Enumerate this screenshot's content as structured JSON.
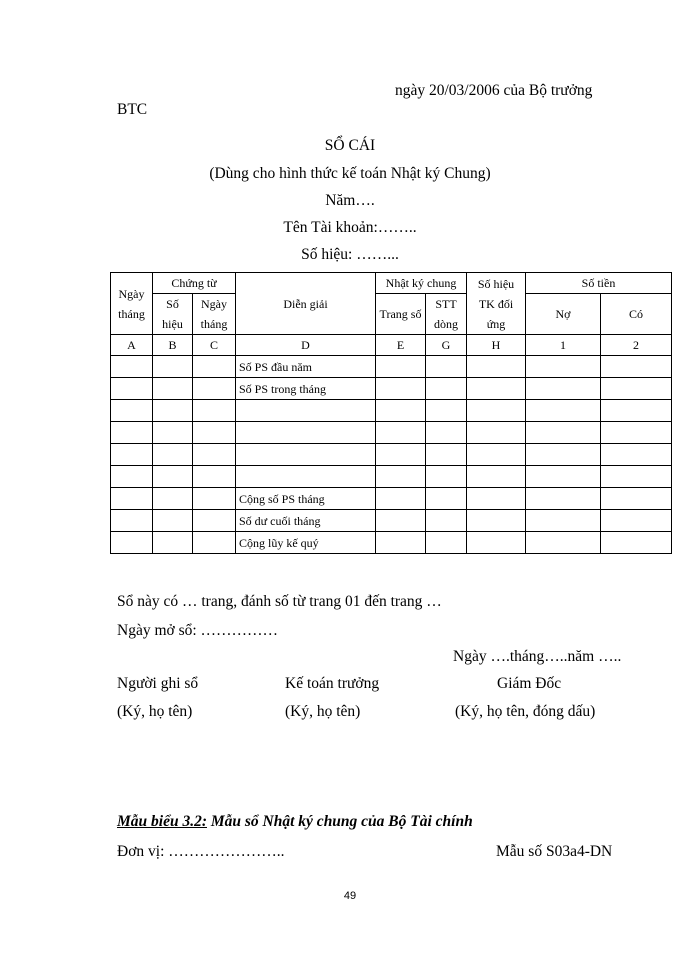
{
  "header": {
    "line1": "ngày   20/03/2006   của  Bộ  trưởng",
    "line2": "BTC"
  },
  "title": {
    "main": "SỔ CÁI",
    "subtitle": "(Dùng cho hình thức kế toán Nhật ký Chung)",
    "year": "Năm….",
    "account_name": "Tên Tài khoản:……..",
    "account_code": "Số hiệu:  ……..."
  },
  "table": {
    "h": {
      "ngay_thang": "Ngày tháng",
      "chung_tu": "Chứng từ",
      "so_hieu": "Số hiệu",
      "ngay_thang2": "Ngày tháng",
      "dien_giai": "Diễn giải",
      "nkc": "Nhật ký chung",
      "trang_so": "Trang số",
      "stt_dong": "STT dòng",
      "tk_doi_ung": "Số hiệu TK đối ứng",
      "so_tien": "Số tiền",
      "no": "Nợ",
      "co": "Có"
    },
    "codes": [
      "A",
      "B",
      "C",
      "D",
      "E",
      "G",
      "H",
      "1",
      "2"
    ],
    "rows": [
      "Số PS đầu năm",
      "Số PS trong tháng",
      "",
      "",
      "",
      "",
      "Cộng số PS tháng",
      "Số dư cuối tháng",
      "Cộng lũy kế quý"
    ]
  },
  "footer": {
    "pages": "Sổ này có … trang, đánh số từ trang 01 đến trang …",
    "open_date": "Ngày mở sổ: ……………",
    "date": "Ngày  ….tháng…..năm …..",
    "sig1": "Người ghi sổ",
    "sig2": "Kế toán trưởng",
    "sig3": "Giám Đốc",
    "sig1b": "(Ký, họ tên)",
    "sig2b": "(Ký, họ tên)",
    "sig3b": "(Ký, họ tên, đóng dấu)"
  },
  "next": {
    "label": "Mẫu biểu 3.2:",
    "title": " Mẫu sổ Nhật ký chung của Bộ Tài chính",
    "unit": "Đơn vị:  …………………..",
    "form": "Mẫu số S03a4-DN"
  },
  "page_number": "49"
}
